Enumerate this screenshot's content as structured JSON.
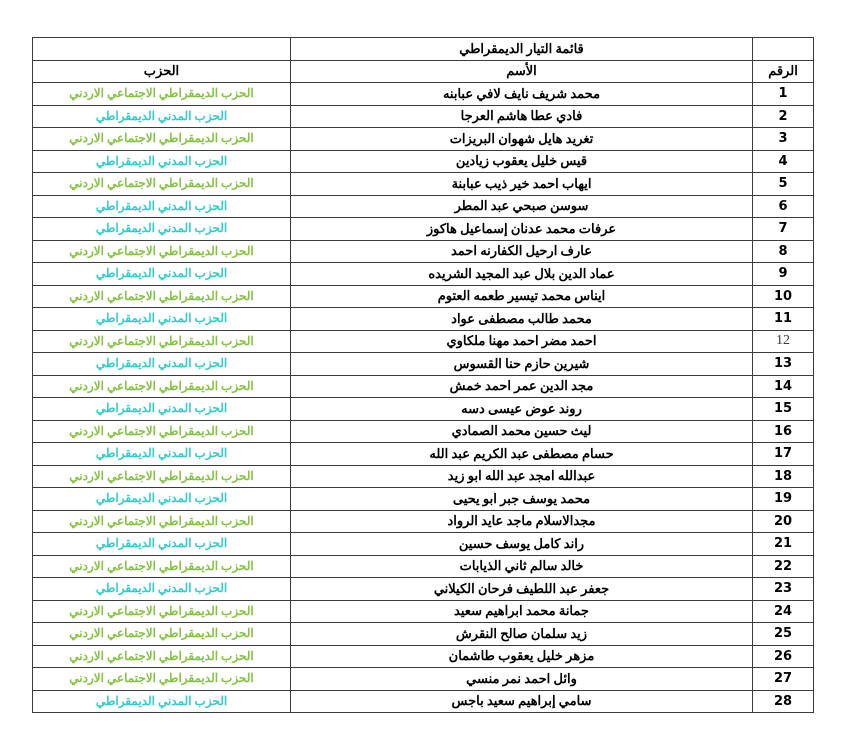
{
  "table": {
    "title": "قائمة التيار الديمقراطي",
    "headers": {
      "number": "الرقم",
      "name": "الأسم",
      "party": "الحزب"
    },
    "party_colors": {
      "green": "#84C441",
      "cyan": "#33CCCC"
    },
    "party_names": {
      "social_democratic": "الحزب الديمقراطي الاجتماعي الاردني",
      "civil_democratic": "الحزب المدني الديمقراطي"
    },
    "rows": [
      {
        "number": "1",
        "name": "محمد شريف نايف لافي عبابنه",
        "party": "الحزب الديمقراطي الاجتماعي الاردني",
        "party_color": "green",
        "number_light": false
      },
      {
        "number": "2",
        "name": "فادي عطا هاشم العرجا",
        "party": "الحزب المدني الديمقراطي",
        "party_color": "cyan",
        "number_light": false
      },
      {
        "number": "3",
        "name": "تغريد هايل شهوان البريزات",
        "party": "الحزب الديمقراطي الاجتماعي الاردني",
        "party_color": "green",
        "number_light": false
      },
      {
        "number": "4",
        "name": "قيس خليل يعقوب زيادين",
        "party": "الحزب المدني الديمقراطي",
        "party_color": "cyan",
        "number_light": false
      },
      {
        "number": "5",
        "name": "ايهاب احمد خير ذيب عبابنة",
        "party": "الحزب الديمقراطي الاجتماعي الاردني",
        "party_color": "green",
        "number_light": false
      },
      {
        "number": "6",
        "name": "سوسن صبحي عبد المطر",
        "party": "الحزب المدني الديمقراطي",
        "party_color": "cyan",
        "number_light": false
      },
      {
        "number": "7",
        "name": "عرفات محمد عدنان إسماعيل هاكوز",
        "party": "الحزب المدني الديمقراطي",
        "party_color": "cyan",
        "number_light": false
      },
      {
        "number": "8",
        "name": "عارف ارحيل الكفارنه احمد",
        "party": "الحزب الديمقراطي الاجتماعي الاردني",
        "party_color": "green",
        "number_light": false
      },
      {
        "number": "9",
        "name": "عماد الدين بلال عبد المجيد الشريده",
        "party": "الحزب المدني الديمقراطي",
        "party_color": "cyan",
        "number_light": false
      },
      {
        "number": "10",
        "name": "ايناس محمد تيسير طعمه العتوم",
        "party": "الحزب الديمقراطي الاجتماعي الاردني",
        "party_color": "green",
        "number_light": false
      },
      {
        "number": "11",
        "name": "محمد طالب مصطفى عواد",
        "party": "الحزب المدني الديمقراطي",
        "party_color": "cyan",
        "number_light": false
      },
      {
        "number": "12",
        "name": "احمد مضر احمد مهنا ملكاوي",
        "party": "الحزب الديمقراطي الاجتماعي الاردني",
        "party_color": "green",
        "number_light": true
      },
      {
        "number": "13",
        "name": "شيرين حازم حنا القسوس",
        "party": "الحزب المدني الديمقراطي",
        "party_color": "cyan",
        "number_light": false
      },
      {
        "number": "14",
        "name": "مجد الدين عمر احمد خمش",
        "party": "الحزب الديمقراطي الاجتماعي الاردني",
        "party_color": "green",
        "number_light": false
      },
      {
        "number": "15",
        "name": "روند عوض عيسى دسه",
        "party": "الحزب المدني الديمقراطي",
        "party_color": "cyan",
        "number_light": false
      },
      {
        "number": "16",
        "name": "ليث حسين محمد الصمادي",
        "party": "الحزب الديمقراطي الاجتماعي الاردني",
        "party_color": "green",
        "number_light": false
      },
      {
        "number": "17",
        "name": "حسام مصطفى عبد الكريم عبد الله",
        "party": "الحزب المدني الديمقراطي",
        "party_color": "cyan",
        "number_light": false
      },
      {
        "number": "18",
        "name": "عبدالله امجد عبد الله ابو زيد",
        "party": "الحزب الديمقراطي الاجتماعي الاردني",
        "party_color": "green",
        "number_light": false
      },
      {
        "number": "19",
        "name": "محمد يوسف جبر ابو يحيى",
        "party": "الحزب المدني الديمقراطي",
        "party_color": "cyan",
        "number_light": false
      },
      {
        "number": "20",
        "name": "مجدالاسلام ماجد عايد الرواد",
        "party": "الحزب الديمقراطي الاجتماعي الاردني",
        "party_color": "green",
        "number_light": false
      },
      {
        "number": "21",
        "name": "راند كامل يوسف حسين",
        "party": "الحزب المدني الديمقراطي",
        "party_color": "cyan",
        "number_light": false
      },
      {
        "number": "22",
        "name": "خالد سالم ثاني الذيابات",
        "party": "الحزب الديمقراطي الاجتماعي الاردني",
        "party_color": "green",
        "number_light": false
      },
      {
        "number": "23",
        "name": "جعفر عبد اللطيف فرحان الكيلاني",
        "party": "الحزب المدني الديمقراطي",
        "party_color": "cyan",
        "number_light": false
      },
      {
        "number": "24",
        "name": "جمانة محمد ابراهيم سعيد",
        "party": "الحزب الديمقراطي الاجتماعي الاردني",
        "party_color": "green",
        "number_light": false
      },
      {
        "number": "25",
        "name": "زيد سلمان صالح النقرش",
        "party": "الحزب الديمقراطي الاجتماعي الاردني",
        "party_color": "green",
        "number_light": false
      },
      {
        "number": "26",
        "name": "مزهر خليل يعقوب طاشمان",
        "party": "الحزب الديمقراطي الاجتماعي الاردني",
        "party_color": "green",
        "number_light": false
      },
      {
        "number": "27",
        "name": "وائل احمد نمر منسي",
        "party": "الحزب الديمقراطي الاجتماعي الاردني",
        "party_color": "green",
        "number_light": false
      },
      {
        "number": "28",
        "name": "سامي إبراهيم سعيد باجس",
        "party": "الحزب المدني الديمقراطي",
        "party_color": "cyan",
        "number_light": false
      }
    ]
  }
}
